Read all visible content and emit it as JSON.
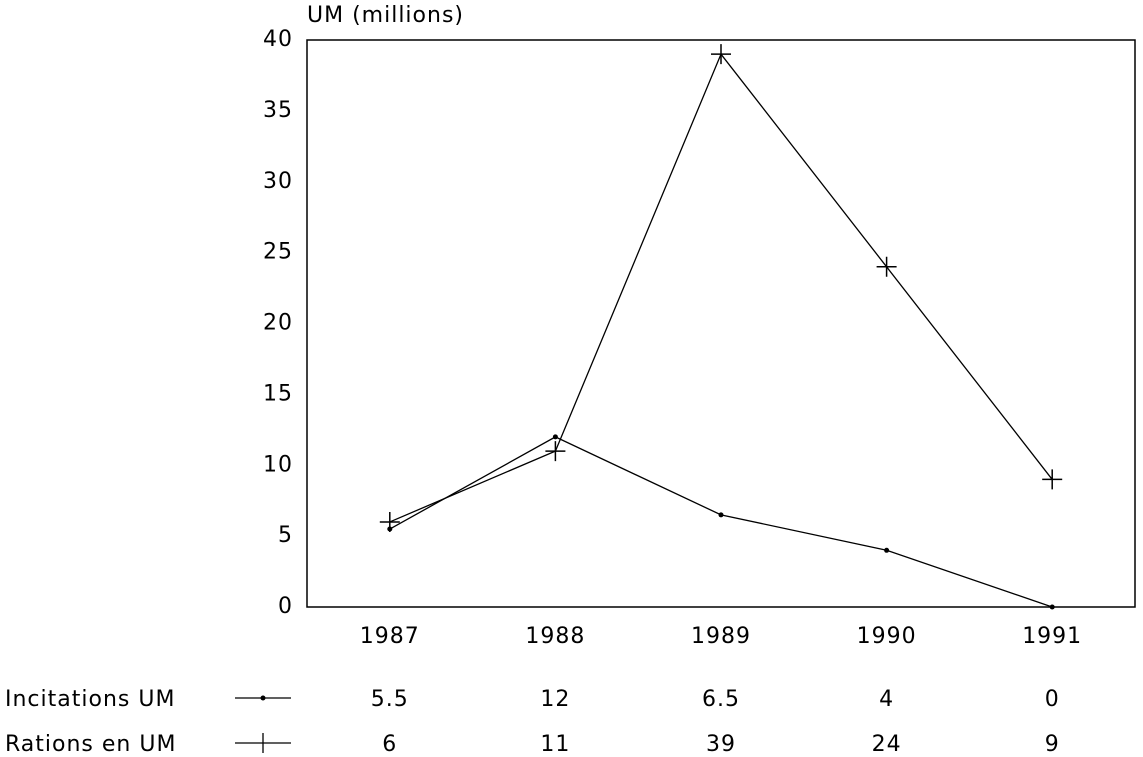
{
  "chart_data": {
    "type": "line",
    "y_label": "UM (millions)",
    "categories": [
      "1987",
      "1988",
      "1989",
      "1990",
      "1991"
    ],
    "series": [
      {
        "name": "Incitations UM",
        "color": "#000000",
        "marker": "dot",
        "values": [
          5.5,
          12,
          6.5,
          4,
          0
        ]
      },
      {
        "name": "Rations en UM",
        "color": "#000000",
        "marker": "plus",
        "values": [
          6,
          11,
          39,
          24,
          9
        ]
      }
    ],
    "ylim": [
      0,
      40
    ],
    "yticks": [
      0,
      5,
      10,
      15,
      20,
      25,
      30,
      35,
      40
    ],
    "grid": false
  }
}
